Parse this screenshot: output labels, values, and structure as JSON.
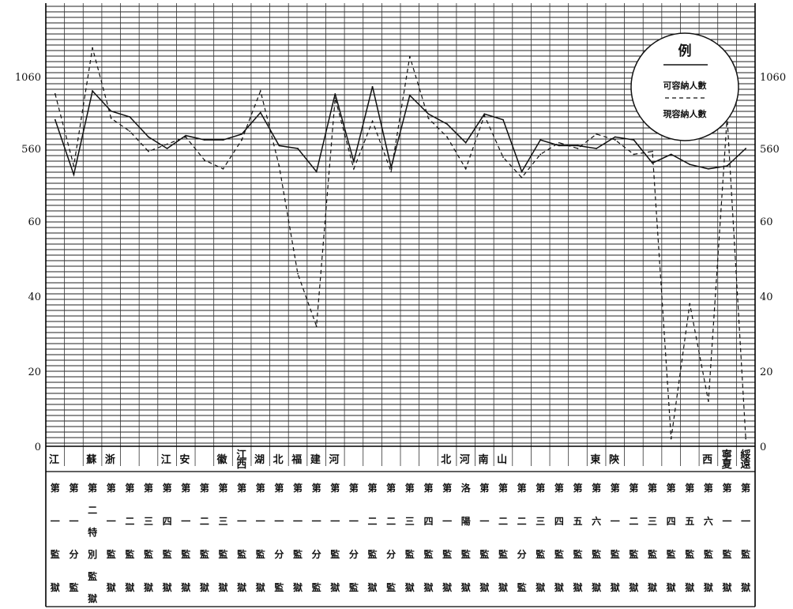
{
  "chart_data": {
    "type": "line",
    "y_ticks_left": [
      "0",
      "20",
      "40",
      "60",
      "560",
      "1060"
    ],
    "y_ticks_right": [
      "0",
      "20",
      "40",
      "60",
      "560",
      "1060"
    ],
    "ylim": [
      0,
      1400
    ],
    "grid": true,
    "legend_position": "top-right",
    "legend": {
      "title": "例",
      "entries": [
        {
          "label": "可容納人數",
          "style": "solid"
        },
        {
          "label": "現容納人數",
          "style": "dashed"
        }
      ]
    },
    "provinces": [
      {
        "label": "江",
        "col": 0
      },
      {
        "label": "蘇",
        "col": 2
      },
      {
        "label": "浙",
        "col": 3
      },
      {
        "label": "江",
        "col": 6
      },
      {
        "label": "安",
        "col": 7
      },
      {
        "label": "徽",
        "col": 9
      },
      {
        "label": "江西",
        "col": 10
      },
      {
        "label": "湖",
        "col": 11
      },
      {
        "label": "北",
        "col": 12
      },
      {
        "label": "福",
        "col": 13
      },
      {
        "label": "建",
        "col": 14
      },
      {
        "label": "河",
        "col": 15
      },
      {
        "label": "北",
        "col": 21
      },
      {
        "label": "河",
        "col": 22
      },
      {
        "label": "南",
        "col": 23
      },
      {
        "label": "山",
        "col": 24
      },
      {
        "label": "東",
        "col": 29
      },
      {
        "label": "陝",
        "col": 30
      },
      {
        "label": "西",
        "col": 35
      },
      {
        "label": "寧夏",
        "col": 36
      },
      {
        "label": "綏遠",
        "col": 37
      }
    ],
    "categories": [
      "第一監獄",
      "第一分監",
      "第二特別監獄",
      "第一監獄",
      "第二監獄",
      "第三監獄",
      "第四監獄",
      "第一監獄",
      "第二監獄",
      "第三監獄",
      "第一監獄",
      "第一監獄",
      "第一分監",
      "第一監獄",
      "第一分監",
      "第一監獄",
      "第一分監",
      "第二監獄",
      "第二分監",
      "第三監獄",
      "第四監獄",
      "第一監獄",
      "洛陽監獄",
      "第一監獄",
      "第二監獄",
      "第二分監",
      "第三監獄",
      "第四監獄",
      "第五監獄",
      "第六監獄",
      "第一監獄",
      "第二監獄",
      "第三監獄",
      "第四監獄",
      "第五監獄",
      "第六監獄",
      "第一監獄",
      "第一監獄"
    ],
    "series": [
      {
        "name": "可容納人數",
        "style": "solid",
        "values": [
          760,
          380,
          960,
          820,
          780,
          640,
          560,
          650,
          620,
          620,
          660,
          810,
          580,
          560,
          400,
          940,
          470,
          990,
          430,
          930,
          800,
          730,
          600,
          800,
          760,
          400,
          620,
          580,
          580,
          560,
          640,
          620,
          460,
          520,
          450,
          420,
          440,
          560
        ]
      },
      {
        "name": "現容納人數",
        "style": "dashed",
        "values": [
          940,
          440,
          1260,
          770,
          680,
          540,
          590,
          640,
          480,
          420,
          620,
          960,
          440,
          46,
          32,
          910,
          420,
          750,
          400,
          1200,
          770,
          640,
          420,
          790,
          500,
          360,
          520,
          600,
          560,
          660,
          620,
          520,
          540,
          2,
          38,
          12,
          780,
          2
        ]
      }
    ]
  }
}
